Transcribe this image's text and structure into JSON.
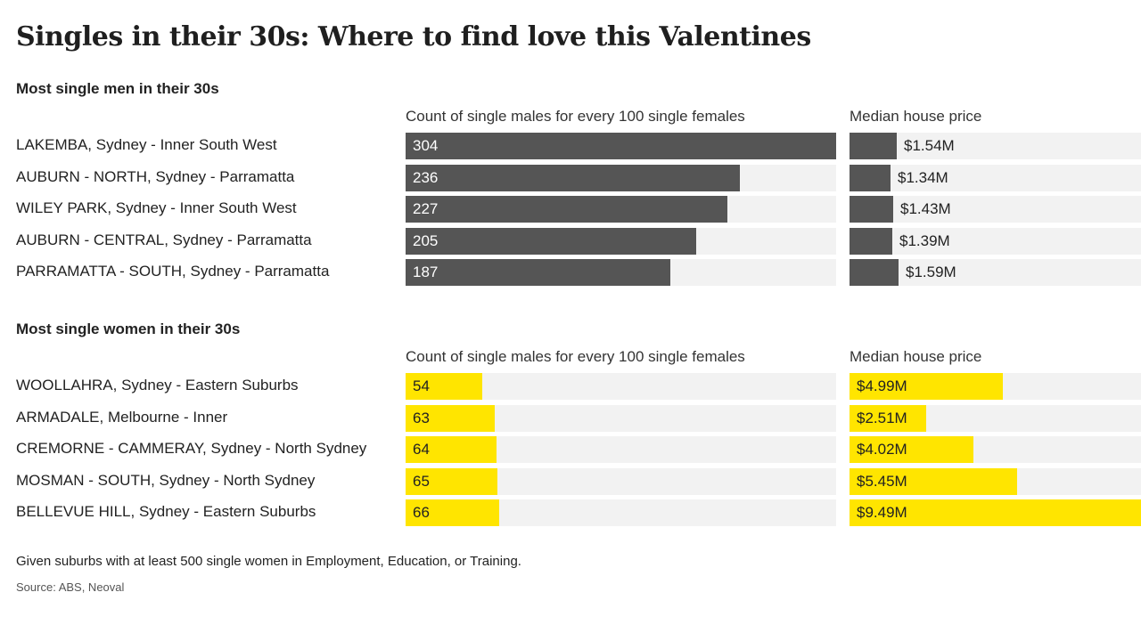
{
  "title": "Singles in their 30s: Where to find love this Valentines",
  "footnote": "Given suburbs with at least 500 single women in Employment, Education, or Training.",
  "source": "Source: ABS, Neoval",
  "colors": {
    "men_bar": "#555555",
    "women_bar": "#ffe500",
    "track": "#f2f2f2"
  },
  "chart_data": [
    {
      "type": "bar",
      "title": "Most single men in their 30s",
      "columns": [
        "Count of single males for every 100 single females",
        "Median house price"
      ],
      "categories": [
        "LAKEMBA, Sydney - Inner South West",
        "AUBURN - NORTH, Sydney - Parramatta",
        "WILEY PARK,  Sydney - Inner South West",
        "AUBURN - CENTRAL, Sydney - Parramatta",
        "PARRAMATTA - SOUTH, Sydney - Parramatta"
      ],
      "count_values": [
        304,
        236,
        227,
        205,
        187
      ],
      "count_labels": [
        "304",
        "236",
        "227",
        "205",
        "187"
      ],
      "price_values": [
        1.54,
        1.34,
        1.43,
        1.39,
        1.59
      ],
      "price_labels": [
        "$1.54M",
        "$1.34M",
        "$1.43M",
        "$1.39M",
        "$1.59M"
      ],
      "count_max": 304,
      "price_max": 9.49
    },
    {
      "type": "bar",
      "title": "Most single women in their 30s",
      "columns": [
        "Count of single males for every 100 single females",
        "Median house price"
      ],
      "categories": [
        "WOOLLAHRA, Sydney - Eastern Suburbs",
        "ARMADALE, Melbourne - Inner",
        "CREMORNE - CAMMERAY, Sydney - North Sydney",
        "MOSMAN - SOUTH, Sydney - North Sydney",
        "BELLEVUE HILL, Sydney - Eastern Suburbs"
      ],
      "count_values": [
        54,
        63,
        64,
        65,
        66
      ],
      "count_labels": [
        "54",
        "63",
        "64",
        "65",
        "66"
      ],
      "price_values": [
        4.99,
        2.51,
        4.02,
        5.45,
        9.49
      ],
      "price_labels": [
        "$4.99M",
        "$2.51M",
        "$4.02M",
        "$5.45M",
        "$9.49M"
      ],
      "count_max": 304,
      "price_max": 9.49
    }
  ]
}
